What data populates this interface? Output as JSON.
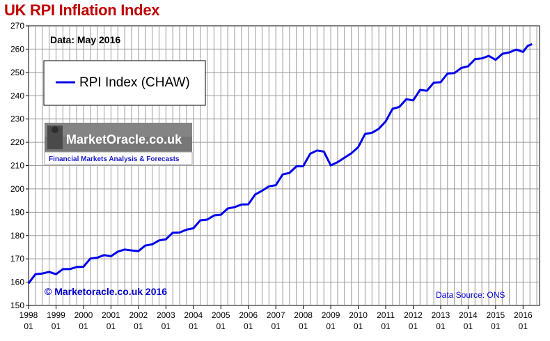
{
  "chart_data": {
    "type": "line",
    "title": "UK RPI Inflation Index",
    "note": "Data: May 2016",
    "copyright": "© Marketoracle.co.uk 2016",
    "source": "Data Source: ONS",
    "logo": {
      "name": "MarketOracle.co.uk",
      "tagline": "Financial Markets Analysis & Forecasts"
    },
    "legend": {
      "position": "top-left",
      "entries": [
        "RPI Index (CHAW)"
      ]
    },
    "series_color": "#0000ee",
    "ylim": [
      150,
      270
    ],
    "yticks": [
      150,
      160,
      170,
      180,
      190,
      200,
      210,
      220,
      230,
      240,
      250,
      260,
      270
    ],
    "xlim": [
      1998.0,
      2016.6
    ],
    "grid": true,
    "xticks": [
      {
        "top": "1998",
        "bottom": "01"
      },
      {
        "top": "1999",
        "bottom": "01"
      },
      {
        "top": "2000",
        "bottom": "01"
      },
      {
        "top": "2001",
        "bottom": "01"
      },
      {
        "top": "2002",
        "bottom": "01"
      },
      {
        "top": "2003",
        "bottom": "01"
      },
      {
        "top": "2004",
        "bottom": "01"
      },
      {
        "top": "2005",
        "bottom": "01"
      },
      {
        "top": "2006",
        "bottom": "01"
      },
      {
        "top": "2007",
        "bottom": "01"
      },
      {
        "top": "2008",
        "bottom": "01"
      },
      {
        "top": "2009",
        "bottom": "01"
      },
      {
        "top": "2010",
        "bottom": "01"
      },
      {
        "top": "2011",
        "bottom": "01"
      },
      {
        "top": "2012",
        "bottom": "01"
      },
      {
        "top": "2013",
        "bottom": "01"
      },
      {
        "top": "2014",
        "bottom": "01"
      },
      {
        "top": "2015",
        "bottom": "01"
      },
      {
        "top": "2016",
        "bottom": "01"
      }
    ],
    "series": [
      {
        "name": "RPI Index (CHAW)",
        "x": [
          1998.0,
          1998.25,
          1998.5,
          1998.75,
          1999.0,
          1999.25,
          1999.5,
          1999.75,
          2000.0,
          2000.25,
          2000.5,
          2000.75,
          2001.0,
          2001.25,
          2001.5,
          2001.75,
          2002.0,
          2002.25,
          2002.5,
          2002.75,
          2003.0,
          2003.25,
          2003.5,
          2003.75,
          2004.0,
          2004.25,
          2004.5,
          2004.75,
          2005.0,
          2005.25,
          2005.5,
          2005.75,
          2006.0,
          2006.25,
          2006.5,
          2006.75,
          2007.0,
          2007.25,
          2007.5,
          2007.75,
          2008.0,
          2008.25,
          2008.5,
          2008.75,
          2009.0,
          2009.25,
          2009.5,
          2009.75,
          2010.0,
          2010.25,
          2010.5,
          2010.75,
          2011.0,
          2011.25,
          2011.5,
          2011.75,
          2012.0,
          2012.25,
          2012.5,
          2012.75,
          2013.0,
          2013.25,
          2013.5,
          2013.75,
          2014.0,
          2014.25,
          2014.5,
          2014.75,
          2015.0,
          2015.25,
          2015.5,
          2015.75,
          2016.0,
          2016.17,
          2016.33
        ],
        "values": [
          159.5,
          163.4,
          163.7,
          164.4,
          163.4,
          165.6,
          165.6,
          166.5,
          166.6,
          170.1,
          170.5,
          171.6,
          171.1,
          173.1,
          174.0,
          173.6,
          173.3,
          175.7,
          176.2,
          177.9,
          178.4,
          181.2,
          181.3,
          182.5,
          183.1,
          186.5,
          186.8,
          188.6,
          188.9,
          191.6,
          192.2,
          193.3,
          193.4,
          197.6,
          199.2,
          201.1,
          201.6,
          206.2,
          206.9,
          209.7,
          209.8,
          215.1,
          216.5,
          216.0,
          210.1,
          211.5,
          213.4,
          215.3,
          217.9,
          223.6,
          224.1,
          225.8,
          229.0,
          234.4,
          235.2,
          238.5,
          238.0,
          242.5,
          242.1,
          245.6,
          245.8,
          249.5,
          249.7,
          251.9,
          252.6,
          255.7,
          256.0,
          257.1,
          255.4,
          258.0,
          258.6,
          259.8,
          258.8,
          261.4,
          262.1
        ]
      }
    ]
  }
}
